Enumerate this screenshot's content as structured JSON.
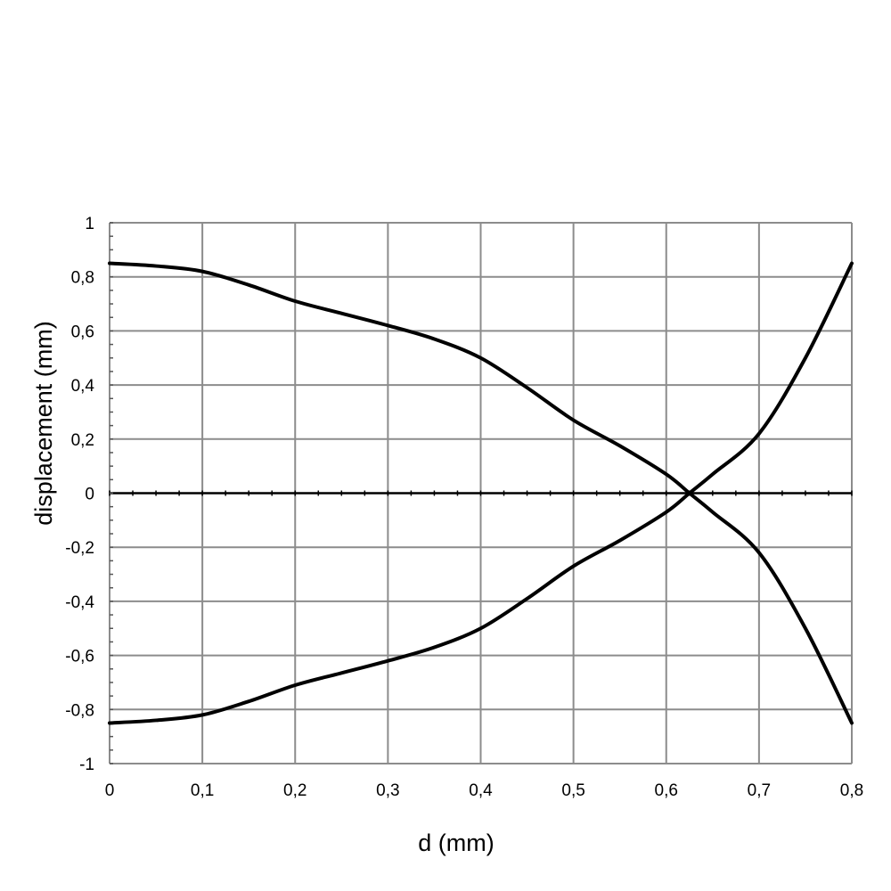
{
  "chart_data": {
    "type": "line",
    "title": "",
    "xlabel": "d (mm)",
    "ylabel": "displacement (mm)",
    "xlim": [
      0,
      0.8
    ],
    "ylim": [
      -1,
      1
    ],
    "x_ticks": [
      "0",
      "0,1",
      "0,2",
      "0,3",
      "0,4",
      "0,5",
      "0,6",
      "0,7",
      "0,8"
    ],
    "y_ticks": [
      "1",
      "0,8",
      "0,6",
      "0,4",
      "0,2",
      "0",
      "-0,2",
      "-0,4",
      "-0,6",
      "-0,8",
      "-1"
    ],
    "grid": true,
    "line_color": "#000000",
    "grid_color": "#8c8c8c",
    "series": [
      {
        "x": [
          0,
          0.05,
          0.1,
          0.15,
          0.2,
          0.25,
          0.3,
          0.35,
          0.4,
          0.45,
          0.5,
          0.55,
          0.6,
          0.625,
          0.65,
          0.7,
          0.75,
          0.8
        ],
        "y": [
          0.85,
          0.84,
          0.82,
          0.77,
          0.71,
          0.665,
          0.62,
          0.57,
          0.5,
          0.39,
          0.27,
          0.175,
          0.07,
          0.0,
          -0.07,
          -0.22,
          -0.5,
          -0.85
        ]
      },
      {
        "x": [
          0,
          0.05,
          0.1,
          0.15,
          0.2,
          0.25,
          0.3,
          0.35,
          0.4,
          0.45,
          0.5,
          0.55,
          0.6,
          0.625,
          0.65,
          0.7,
          0.75,
          0.8
        ],
        "y": [
          -0.85,
          -0.84,
          -0.82,
          -0.77,
          -0.71,
          -0.665,
          -0.62,
          -0.57,
          -0.5,
          -0.39,
          -0.27,
          -0.175,
          -0.07,
          0.0,
          0.07,
          0.22,
          0.5,
          0.85
        ]
      }
    ]
  }
}
